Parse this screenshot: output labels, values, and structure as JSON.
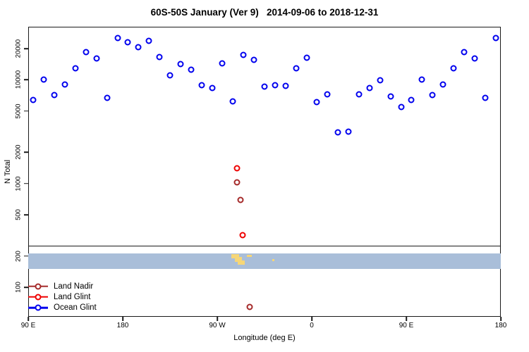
{
  "title": "60S-50S January (Ver 9)   2014-09-06 to 2018-12-31",
  "chart_data": {
    "type": "scatter",
    "title": "60S-50S January (Ver 9)   2014-09-06 to 2018-12-31",
    "xlabel": "Longitude (deg E)",
    "ylabel": "N Total",
    "y_scale": "log",
    "ylim": [
      52,
      32500
    ],
    "xlim": [
      90,
      540
    ],
    "grid": false,
    "x_ticks": [
      {
        "pos": 90,
        "label": "90 E"
      },
      {
        "pos": 180,
        "label": "180"
      },
      {
        "pos": 270,
        "label": "90 W"
      },
      {
        "pos": 360,
        "label": "0"
      },
      {
        "pos": 450,
        "label": "90 E"
      },
      {
        "pos": 540,
        "label": "180"
      }
    ],
    "y_ticks": [
      {
        "value": 100,
        "label": "100"
      },
      {
        "value": 200,
        "label": "200"
      },
      {
        "value": 500,
        "label": "500"
      },
      {
        "value": 1000,
        "label": "1000"
      },
      {
        "value": 2000,
        "label": "2000"
      },
      {
        "value": 5000,
        "label": "5000"
      },
      {
        "value": 10000,
        "label": "10000"
      },
      {
        "value": 20000,
        "label": "20000"
      }
    ],
    "legend": {
      "position": "bottom-left",
      "entries": [
        {
          "name": "Land Nadir",
          "color": "#A52A2A"
        },
        {
          "name": "Land Glint",
          "color": "#EE0000"
        },
        {
          "name": "Ocean Glint",
          "color": "#0000EE"
        }
      ]
    },
    "separator_line_value": 250,
    "map_strip": {
      "top_value": 212,
      "bottom_value": 150,
      "ocean_color": "#A9BED9",
      "land_color": "#F6D677",
      "land_patches": [
        {
          "lon0": 283.5,
          "lon1": 291.0,
          "t0": 0.05,
          "t1": 0.32
        },
        {
          "lon0": 287.0,
          "lon1": 293.5,
          "t0": 0.23,
          "t1": 0.55
        },
        {
          "lon0": 289.5,
          "lon1": 296.0,
          "t0": 0.45,
          "t1": 0.73
        },
        {
          "lon0": 298.0,
          "lon1": 303.0,
          "t0": 0.09,
          "t1": 0.23
        },
        {
          "lon0": 322.5,
          "lon1": 324.5,
          "t0": 0.36,
          "t1": 0.5
        }
      ]
    },
    "series": [
      {
        "name": "Land Nadir",
        "color": "#A52A2A",
        "points": [
          [
            289,
            1030
          ],
          [
            292,
            700
          ],
          [
            301,
            65
          ]
        ]
      },
      {
        "name": "Land Glint",
        "color": "#EE0000",
        "points": [
          [
            289,
            1400
          ],
          [
            294,
            320
          ]
        ]
      },
      {
        "name": "Ocean Glint",
        "color": "#0000EE",
        "points": [
          [
            95,
            6400
          ],
          [
            105,
            10000
          ],
          [
            115,
            7100
          ],
          [
            125,
            9000
          ],
          [
            135,
            12900
          ],
          [
            145,
            18500
          ],
          [
            155,
            16000
          ],
          [
            165,
            6700
          ],
          [
            175,
            25300
          ],
          [
            185,
            23000
          ],
          [
            195,
            20600
          ],
          [
            205,
            23700
          ],
          [
            215,
            16600
          ],
          [
            225,
            11000
          ],
          [
            235,
            14200
          ],
          [
            245,
            12500
          ],
          [
            255,
            8850
          ],
          [
            265,
            8300
          ],
          [
            275,
            14400
          ],
          [
            285,
            6200
          ],
          [
            295,
            17400
          ],
          [
            305,
            15600
          ],
          [
            315,
            8600
          ],
          [
            325,
            8850
          ],
          [
            335,
            8700
          ],
          [
            345,
            12900
          ],
          [
            355,
            16300
          ],
          [
            365,
            6100
          ],
          [
            375,
            7200
          ],
          [
            385,
            3100
          ],
          [
            395,
            3150
          ],
          [
            405,
            7200
          ],
          [
            415,
            8300
          ],
          [
            425,
            9900
          ],
          [
            435,
            6900
          ],
          [
            445,
            5450
          ],
          [
            455,
            6400
          ],
          [
            465,
            10000
          ],
          [
            475,
            7100
          ],
          [
            485,
            9000
          ],
          [
            495,
            12900
          ],
          [
            505,
            18500
          ],
          [
            515,
            16000
          ],
          [
            525,
            6700
          ],
          [
            535,
            25300
          ]
        ]
      }
    ]
  }
}
